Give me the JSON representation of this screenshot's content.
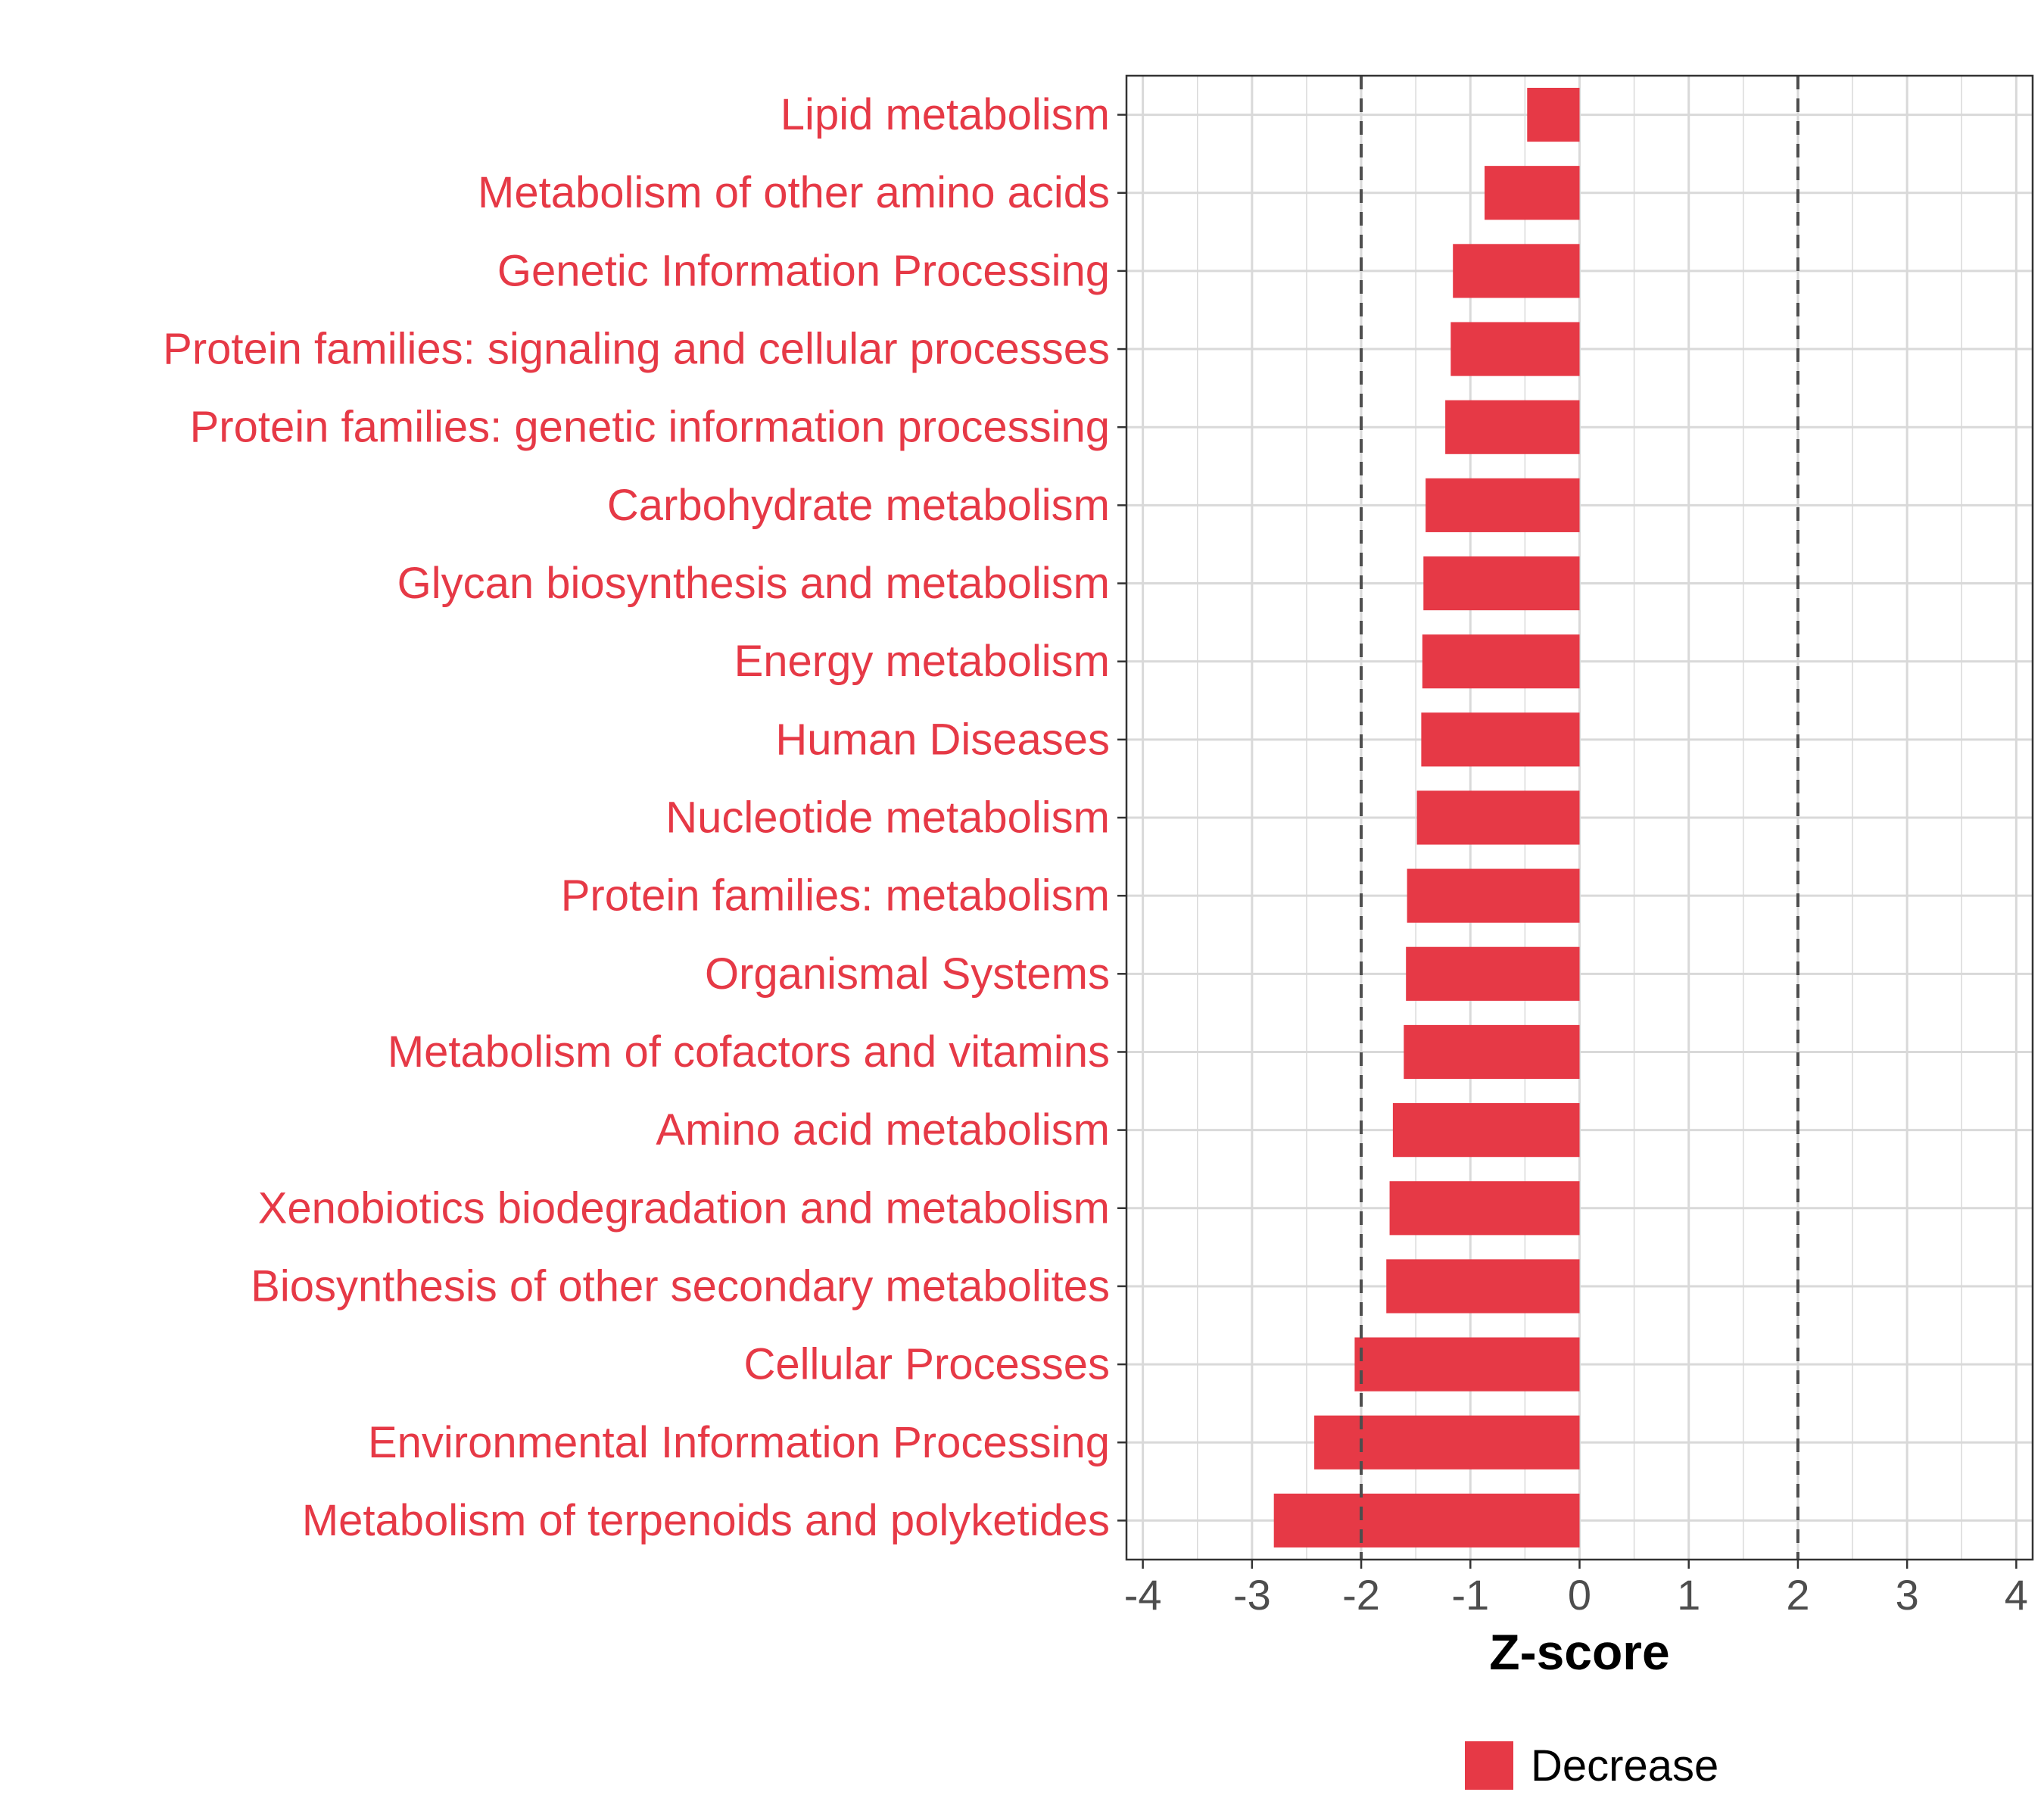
{
  "chart_data": {
    "type": "bar",
    "orientation": "horizontal",
    "categories": [
      "Lipid metabolism",
      "Metabolism of other amino acids",
      "Genetic Information Processing",
      "Protein families: signaling and cellular processes",
      "Protein families: genetic information processing",
      "Carbohydrate metabolism",
      "Glycan biosynthesis and metabolism",
      "Energy metabolism",
      "Human Diseases",
      "Nucleotide metabolism",
      "Protein families: metabolism",
      "Organismal Systems",
      "Metabolism of cofactors and vitamins",
      "Amino acid metabolism",
      "Xenobiotics biodegradation and metabolism",
      "Biosynthesis of other secondary metabolites",
      "Cellular Processes",
      "Environmental Information Processing",
      "Metabolism of terpenoids and polyketides"
    ],
    "series": [
      {
        "name": "Decrease",
        "values": [
          -0.48,
          -0.87,
          -1.16,
          -1.18,
          -1.23,
          -1.41,
          -1.43,
          -1.44,
          -1.45,
          -1.49,
          -1.58,
          -1.59,
          -1.61,
          -1.71,
          -1.74,
          -1.77,
          -2.06,
          -2.43,
          -2.8
        ]
      }
    ],
    "xlabel": "Z-score",
    "ylabel": "",
    "xlim": [
      -4.15,
      4.15
    ],
    "xticks": [
      -4,
      -3,
      -2,
      -1,
      0,
      1,
      2,
      3,
      4
    ],
    "reference_lines": [
      -2,
      2
    ],
    "grid": true,
    "legend": {
      "position": "bottom",
      "entries": [
        "Decrease"
      ]
    },
    "colors": {
      "bar": "#E63946",
      "category_label": "#E63946",
      "grid": "#D9D9D9",
      "reference_line": "#4D4D4D",
      "tick_label": "#4D4D4D",
      "axis": "#333333"
    }
  }
}
